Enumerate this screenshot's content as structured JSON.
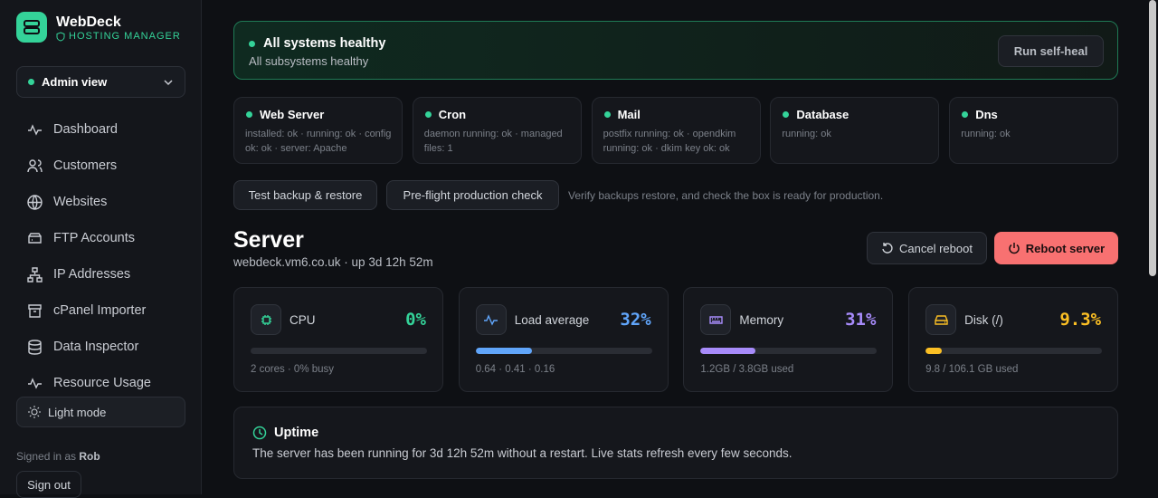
{
  "sidebar": {
    "brand": "WebDeck",
    "tagline": "HOSTING MANAGER",
    "view_selector": "Admin view",
    "nav": [
      "Dashboard",
      "Customers",
      "Websites",
      "FTP Accounts",
      "IP Addresses",
      "cPanel Importer",
      "Data Inspector",
      "Resource Usage"
    ],
    "theme_toggle": "Light mode",
    "signed_in_prefix": "Signed in as",
    "user": "Rob",
    "sign_out": "Sign out"
  },
  "health_banner": {
    "title": "All systems healthy",
    "subtitle": "All subsystems healthy",
    "action": "Run self-heal"
  },
  "subsystems": [
    {
      "name": "Web Server",
      "detail": "installed: ok · running: ok · config ok: ok · server: Apache"
    },
    {
      "name": "Cron",
      "detail": "daemon running: ok · managed files: 1"
    },
    {
      "name": "Mail",
      "detail": "postfix running: ok · opendkim running: ok · dkim key ok: ok"
    },
    {
      "name": "Database",
      "detail": "running: ok"
    },
    {
      "name": "Dns",
      "detail": "running: ok"
    }
  ],
  "checks": {
    "buttons": [
      "Test backup & restore",
      "Pre-flight production check"
    ],
    "note": "Verify backups restore, and check the box is ready for production."
  },
  "server": {
    "title": "Server",
    "host": "webdeck.vm6.co.uk · up 3d 12h 52m",
    "actions": [
      "Cancel reboot",
      "Reboot server"
    ]
  },
  "metrics": [
    {
      "label": "CPU",
      "value": 0,
      "value_label": "0%",
      "detail": "2 cores · 0% busy",
      "color": "#34d399"
    },
    {
      "label": "Load average",
      "value": 32,
      "value_label": "32%",
      "detail": "0.64 · 0.41 · 0.16",
      "color": "#60a5fa"
    },
    {
      "label": "Memory",
      "value": 31,
      "value_label": "31%",
      "detail": "1.2GB / 3.8GB used",
      "color": "#a78bfa"
    },
    {
      "label": "Disk (/)",
      "value": 9.3,
      "value_label": "9.3%",
      "detail": "9.8 / 106.1 GB used",
      "color": "#fbbf24"
    }
  ],
  "uptime": {
    "title": "Uptime",
    "text": "The server has been running for 3d 12h 52m without a restart. Live stats refresh every few seconds."
  }
}
